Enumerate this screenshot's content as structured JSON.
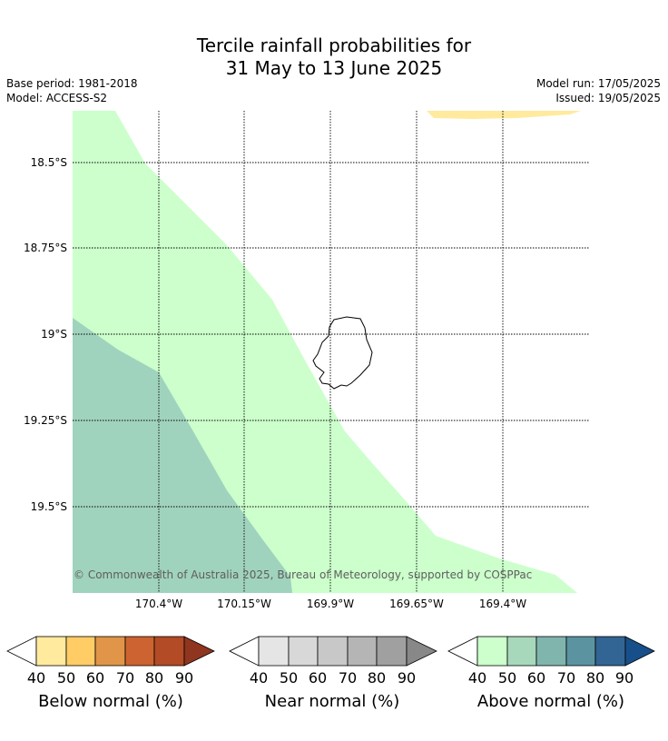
{
  "title": {
    "line1": "Tercile rainfall probabilities for",
    "line2": "31 May to 13 June 2025"
  },
  "meta": {
    "base_period": "Base period: 1981-2018",
    "model": "Model: ACCESS-S2",
    "model_run": "Model run: 17/05/2025",
    "issued": "Issued: 19/05/2025"
  },
  "map": {
    "lat_labels": [
      "18.5°S",
      "18.75°S",
      "19°S",
      "19.25°S",
      "19.5°S"
    ],
    "lon_labels": [
      "170.4°W",
      "170.15°W",
      "169.9°W",
      "169.65°W",
      "169.4°W"
    ],
    "copyright": "© Commonwealth of Australia 2025, Bureau of Meteorology, supported by COSPPac",
    "colors": {
      "above_40_50": "#ccffcc",
      "above_50_60": "#a0d3bd",
      "below_40_50": "#ffea9e",
      "coastline": "#000000"
    }
  },
  "legend": {
    "below": {
      "title": "Below normal (%)",
      "ticks": [
        "40",
        "50",
        "60",
        "70",
        "80",
        "90"
      ],
      "colors": [
        "#ffea9e",
        "#ffcc66",
        "#e09548",
        "#cd6330",
        "#b24b26",
        "#8f3520"
      ]
    },
    "near": {
      "title": "Near normal (%)",
      "ticks": [
        "40",
        "50",
        "60",
        "70",
        "80",
        "90"
      ],
      "colors": [
        "#e5e5e5",
        "#d8d8d8",
        "#c8c8c8",
        "#b5b5b5",
        "#a0a0a0",
        "#888888"
      ]
    },
    "above": {
      "title": "Above normal (%)",
      "ticks": [
        "40",
        "50",
        "60",
        "70",
        "80",
        "90"
      ],
      "colors": [
        "#ccffcc",
        "#a8d8bb",
        "#80b5ae",
        "#5b94a0",
        "#326593",
        "#174f8a"
      ]
    }
  }
}
